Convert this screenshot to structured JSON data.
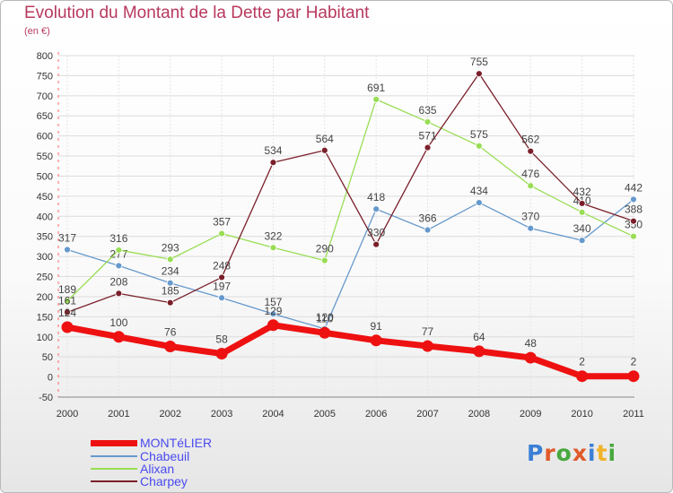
{
  "title": "Evolution du Montant de la Dette par Habitant",
  "subtitle": "(en €)",
  "logo": {
    "text": "Proxiti",
    "letter_colors": [
      "#3a7fd5",
      "#e05b2a",
      "#48a83e",
      "#e05b2a",
      "#3a7fd5",
      "#f0b42a",
      "#48a83e"
    ]
  },
  "chart_data": {
    "type": "line",
    "x": [
      "2000",
      "2001",
      "2002",
      "2003",
      "2004",
      "2005",
      "2006",
      "2007",
      "2008",
      "2009",
      "2010",
      "2011"
    ],
    "ylim": [
      -50,
      800
    ],
    "yticks": [
      -50,
      0,
      50,
      100,
      150,
      200,
      250,
      300,
      350,
      400,
      450,
      500,
      550,
      600,
      650,
      700,
      750,
      800
    ],
    "grid": true,
    "legend_position": "bottom-left",
    "series": [
      {
        "name": "MONTéLIER",
        "color": "#ee1111",
        "values": [
          124,
          100,
          76,
          58,
          129,
          110,
          91,
          77,
          64,
          48,
          2,
          2
        ]
      },
      {
        "name": "Chabeuil",
        "color": "#6699cc",
        "values": [
          317,
          277,
          234,
          197,
          157,
          120,
          418,
          366,
          434,
          370,
          340,
          442
        ]
      },
      {
        "name": "Alixan",
        "color": "#99dd55",
        "values": [
          189,
          316,
          293,
          357,
          322,
          290,
          691,
          635,
          575,
          476,
          410,
          350
        ]
      },
      {
        "name": "Charpey",
        "color": "#7a1f2a",
        "values": [
          161,
          208,
          185,
          248,
          534,
          564,
          330,
          571,
          755,
          562,
          432,
          388
        ]
      }
    ]
  }
}
